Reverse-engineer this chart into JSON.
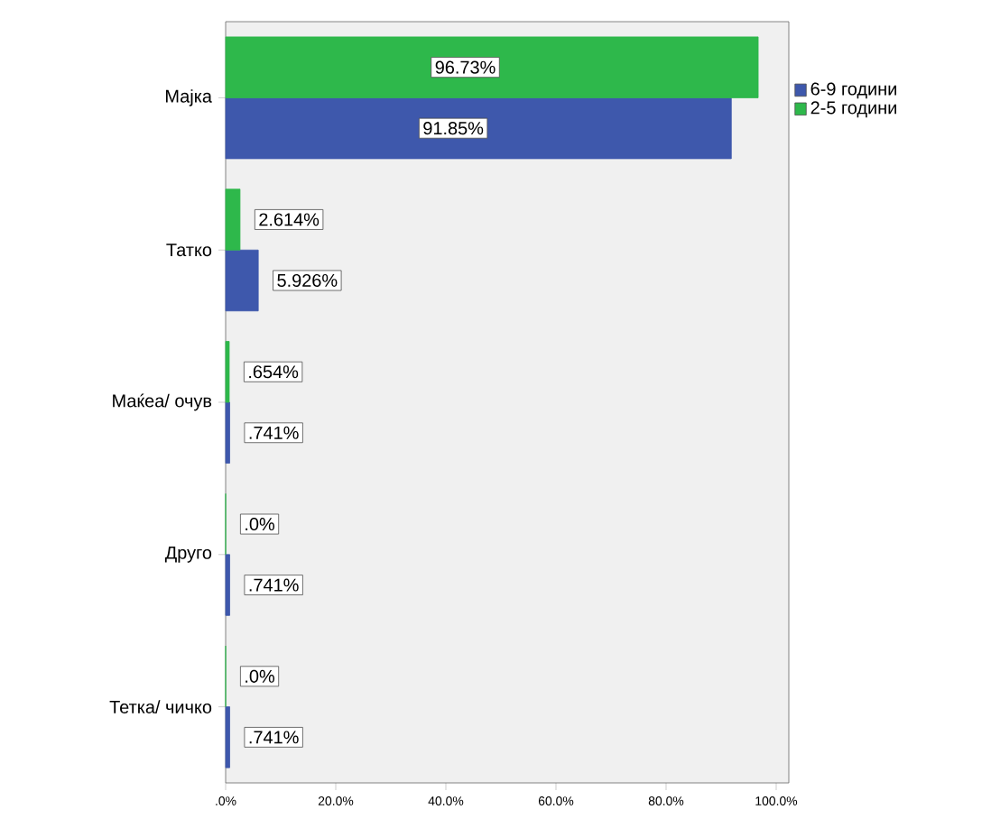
{
  "chart_data": {
    "type": "bar",
    "orientation": "horizontal",
    "categories": [
      "Мајка",
      "Татко",
      "Маќеа/ очув",
      "Друго",
      "Тетка/ чичко"
    ],
    "series": [
      {
        "name": "6-9 години",
        "color": "#3e58ac",
        "values": [
          91.85,
          5.926,
          0.741,
          0.741,
          0.741
        ],
        "value_labels": [
          "91.85%",
          "5.926%",
          ".741%",
          ".741%",
          ".741%"
        ]
      },
      {
        "name": "2-5 години",
        "color": "#2eb84b",
        "values": [
          96.73,
          2.614,
          0.654,
          0,
          0
        ],
        "value_labels": [
          "96.73%",
          "2.614%",
          ".654%",
          ".0%",
          ".0%"
        ]
      }
    ],
    "xlim": [
      0,
      102.3
    ],
    "xticks": [
      {
        "value": 0,
        "label": ".0%"
      },
      {
        "value": 20,
        "label": "20.0%"
      },
      {
        "value": 40,
        "label": "40.0%"
      },
      {
        "value": 60,
        "label": "60.0%"
      },
      {
        "value": 80,
        "label": "80.0%"
      },
      {
        "value": 100,
        "label": "100.0%"
      }
    ],
    "grid": false,
    "legend": "top right"
  }
}
